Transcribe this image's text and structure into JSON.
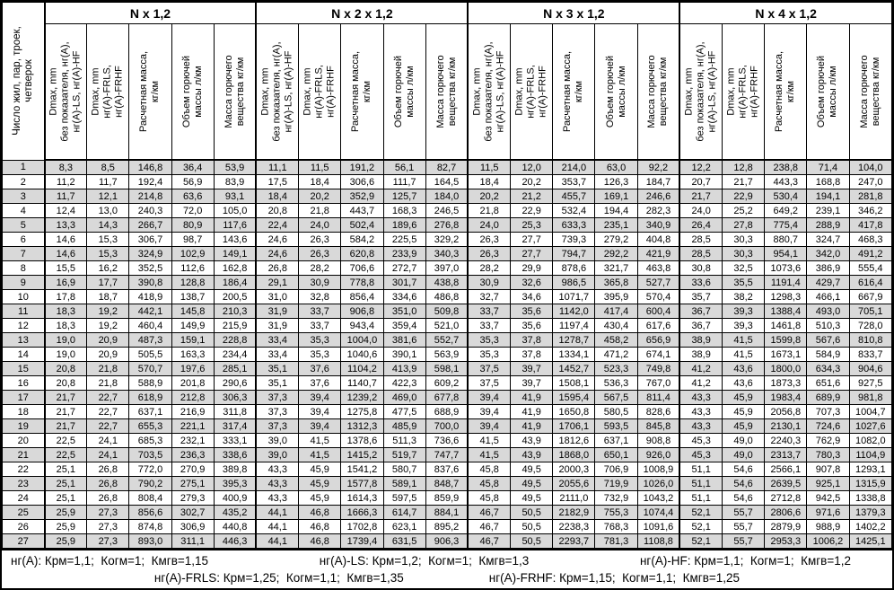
{
  "colors": {
    "stripe": "#d9d9d9",
    "border": "#000000",
    "background": "#ffffff"
  },
  "table": {
    "corner_header": "Число жил, пар, троек,\nчетверок",
    "groups": [
      {
        "label": "N x 1,2"
      },
      {
        "label": "N x 2 x 1,2"
      },
      {
        "label": "N x 3 x 1,2"
      },
      {
        "label": "N x 4 x 1,2"
      }
    ],
    "subheaders": [
      "Dmax, mm\nбез показателя, нг(А),\nнг(А)-LS, нг(А)-HF",
      "Dmax, mm\nнг(А)-FRLS,\nнг(А)-FRHF",
      "Расчетная масса,\nкг/км",
      "Объем горючей\nмассы л/км",
      "Масса горючего\nвещества кг/км"
    ],
    "rows": [
      {
        "num": "1",
        "values": [
          "8,3",
          "8,5",
          "146,8",
          "36,4",
          "53,9",
          "11,1",
          "11,5",
          "191,2",
          "56,1",
          "82,7",
          "11,5",
          "12,0",
          "214,0",
          "63,0",
          "92,2",
          "12,2",
          "12,8",
          "238,8",
          "71,4",
          "104,0"
        ]
      },
      {
        "num": "2",
        "values": [
          "11,2",
          "11,7",
          "192,4",
          "56,9",
          "83,9",
          "17,5",
          "18,4",
          "306,6",
          "111,7",
          "164,5",
          "18,4",
          "20,2",
          "353,7",
          "126,3",
          "184,7",
          "20,7",
          "21,7",
          "443,3",
          "168,8",
          "247,0"
        ]
      },
      {
        "num": "3",
        "values": [
          "11,7",
          "12,1",
          "214,8",
          "63,6",
          "93,1",
          "18,4",
          "20,2",
          "352,9",
          "125,7",
          "184,0",
          "20,2",
          "21,2",
          "455,7",
          "169,1",
          "246,6",
          "21,7",
          "22,9",
          "530,4",
          "194,1",
          "281,8"
        ]
      },
      {
        "num": "4",
        "values": [
          "12,4",
          "13,0",
          "240,3",
          "72,0",
          "105,0",
          "20,8",
          "21,8",
          "443,7",
          "168,3",
          "246,5",
          "21,8",
          "22,9",
          "532,4",
          "194,4",
          "282,3",
          "24,0",
          "25,2",
          "649,2",
          "239,1",
          "346,2"
        ]
      },
      {
        "num": "5",
        "values": [
          "13,3",
          "14,3",
          "266,7",
          "80,9",
          "117,6",
          "22,4",
          "24,0",
          "502,4",
          "189,6",
          "276,8",
          "24,0",
          "25,3",
          "633,3",
          "235,1",
          "340,9",
          "26,4",
          "27,8",
          "775,4",
          "288,9",
          "417,8"
        ]
      },
      {
        "num": "6",
        "values": [
          "14,6",
          "15,3",
          "306,7",
          "98,7",
          "143,6",
          "24,6",
          "26,3",
          "584,2",
          "225,5",
          "329,2",
          "26,3",
          "27,7",
          "739,3",
          "279,2",
          "404,8",
          "28,5",
          "30,3",
          "880,7",
          "324,7",
          "468,3"
        ]
      },
      {
        "num": "7",
        "values": [
          "14,6",
          "15,3",
          "324,9",
          "102,9",
          "149,1",
          "24,6",
          "26,3",
          "620,8",
          "233,9",
          "340,3",
          "26,3",
          "27,7",
          "794,7",
          "292,2",
          "421,9",
          "28,5",
          "30,3",
          "954,1",
          "342,0",
          "491,2"
        ]
      },
      {
        "num": "8",
        "values": [
          "15,5",
          "16,2",
          "352,5",
          "112,6",
          "162,8",
          "26,8",
          "28,2",
          "706,6",
          "272,7",
          "397,0",
          "28,2",
          "29,9",
          "878,6",
          "321,7",
          "463,8",
          "30,8",
          "32,5",
          "1073,6",
          "386,9",
          "555,4"
        ]
      },
      {
        "num": "9",
        "values": [
          "16,9",
          "17,7",
          "390,8",
          "128,8",
          "186,4",
          "29,1",
          "30,9",
          "778,8",
          "301,7",
          "438,8",
          "30,9",
          "32,6",
          "986,5",
          "365,8",
          "527,7",
          "33,6",
          "35,5",
          "1191,4",
          "429,7",
          "616,4"
        ]
      },
      {
        "num": "10",
        "values": [
          "17,8",
          "18,7",
          "418,9",
          "138,7",
          "200,5",
          "31,0",
          "32,8",
          "856,4",
          "334,6",
          "486,8",
          "32,7",
          "34,6",
          "1071,7",
          "395,9",
          "570,4",
          "35,7",
          "38,2",
          "1298,3",
          "466,1",
          "667,9"
        ]
      },
      {
        "num": "11",
        "values": [
          "18,3",
          "19,2",
          "442,1",
          "145,8",
          "210,3",
          "31,9",
          "33,7",
          "906,8",
          "351,0",
          "509,8",
          "33,7",
          "35,6",
          "1142,0",
          "417,4",
          "600,4",
          "36,7",
          "39,3",
          "1388,4",
          "493,0",
          "705,1"
        ]
      },
      {
        "num": "12",
        "values": [
          "18,3",
          "19,2",
          "460,4",
          "149,9",
          "215,9",
          "31,9",
          "33,7",
          "943,4",
          "359,4",
          "521,0",
          "33,7",
          "35,6",
          "1197,4",
          "430,4",
          "617,6",
          "36,7",
          "39,3",
          "1461,8",
          "510,3",
          "728,0"
        ]
      },
      {
        "num": "13",
        "values": [
          "19,0",
          "20,9",
          "487,3",
          "159,1",
          "228,8",
          "33,4",
          "35,3",
          "1004,0",
          "381,6",
          "552,7",
          "35,3",
          "37,8",
          "1278,7",
          "458,2",
          "656,9",
          "38,9",
          "41,5",
          "1599,8",
          "567,6",
          "810,8"
        ]
      },
      {
        "num": "14",
        "values": [
          "19,0",
          "20,9",
          "505,5",
          "163,3",
          "234,4",
          "33,4",
          "35,3",
          "1040,6",
          "390,1",
          "563,9",
          "35,3",
          "37,8",
          "1334,1",
          "471,2",
          "674,1",
          "38,9",
          "41,5",
          "1673,1",
          "584,9",
          "833,7"
        ]
      },
      {
        "num": "15",
        "values": [
          "20,8",
          "21,8",
          "570,7",
          "197,6",
          "285,1",
          "35,1",
          "37,6",
          "1104,2",
          "413,9",
          "598,1",
          "37,5",
          "39,7",
          "1452,7",
          "523,3",
          "749,8",
          "41,2",
          "43,6",
          "1800,0",
          "634,3",
          "904,6"
        ]
      },
      {
        "num": "16",
        "values": [
          "20,8",
          "21,8",
          "588,9",
          "201,8",
          "290,6",
          "35,1",
          "37,6",
          "1140,7",
          "422,3",
          "609,2",
          "37,5",
          "39,7",
          "1508,1",
          "536,3",
          "767,0",
          "41,2",
          "43,6",
          "1873,3",
          "651,6",
          "927,5"
        ]
      },
      {
        "num": "17",
        "values": [
          "21,7",
          "22,7",
          "618,9",
          "212,8",
          "306,3",
          "37,3",
          "39,4",
          "1239,2",
          "469,0",
          "677,8",
          "39,4",
          "41,9",
          "1595,4",
          "567,5",
          "811,4",
          "43,3",
          "45,9",
          "1983,4",
          "689,9",
          "981,8"
        ]
      },
      {
        "num": "18",
        "values": [
          "21,7",
          "22,7",
          "637,1",
          "216,9",
          "311,8",
          "37,3",
          "39,4",
          "1275,8",
          "477,5",
          "688,9",
          "39,4",
          "41,9",
          "1650,8",
          "580,5",
          "828,6",
          "43,3",
          "45,9",
          "2056,8",
          "707,3",
          "1004,7"
        ]
      },
      {
        "num": "19",
        "values": [
          "21,7",
          "22,7",
          "655,3",
          "221,1",
          "317,4",
          "37,3",
          "39,4",
          "1312,3",
          "485,9",
          "700,0",
          "39,4",
          "41,9",
          "1706,1",
          "593,5",
          "845,8",
          "43,3",
          "45,9",
          "2130,1",
          "724,6",
          "1027,6"
        ]
      },
      {
        "num": "20",
        "values": [
          "22,5",
          "24,1",
          "685,3",
          "232,1",
          "333,1",
          "39,0",
          "41,5",
          "1378,6",
          "511,3",
          "736,6",
          "41,5",
          "43,9",
          "1812,6",
          "637,1",
          "908,8",
          "45,3",
          "49,0",
          "2240,3",
          "762,9",
          "1082,0"
        ]
      },
      {
        "num": "21",
        "values": [
          "22,5",
          "24,1",
          "703,5",
          "236,3",
          "338,6",
          "39,0",
          "41,5",
          "1415,2",
          "519,7",
          "747,7",
          "41,5",
          "43,9",
          "1868,0",
          "650,1",
          "926,0",
          "45,3",
          "49,0",
          "2313,7",
          "780,3",
          "1104,9"
        ]
      },
      {
        "num": "22",
        "values": [
          "25,1",
          "26,8",
          "772,0",
          "270,9",
          "389,8",
          "43,3",
          "45,9",
          "1541,2",
          "580,7",
          "837,6",
          "45,8",
          "49,5",
          "2000,3",
          "706,9",
          "1008,9",
          "51,1",
          "54,6",
          "2566,1",
          "907,8",
          "1293,1"
        ]
      },
      {
        "num": "23",
        "values": [
          "25,1",
          "26,8",
          "790,2",
          "275,1",
          "395,3",
          "43,3",
          "45,9",
          "1577,8",
          "589,1",
          "848,7",
          "45,8",
          "49,5",
          "2055,6",
          "719,9",
          "1026,0",
          "51,1",
          "54,6",
          "2639,5",
          "925,1",
          "1315,9"
        ]
      },
      {
        "num": "24",
        "values": [
          "25,1",
          "26,8",
          "808,4",
          "279,3",
          "400,9",
          "43,3",
          "45,9",
          "1614,3",
          "597,5",
          "859,9",
          "45,8",
          "49,5",
          "2111,0",
          "732,9",
          "1043,2",
          "51,1",
          "54,6",
          "2712,8",
          "942,5",
          "1338,8"
        ]
      },
      {
        "num": "25",
        "values": [
          "25,9",
          "27,3",
          "856,6",
          "302,7",
          "435,2",
          "44,1",
          "46,8",
          "1666,3",
          "614,7",
          "884,1",
          "46,7",
          "50,5",
          "2182,9",
          "755,3",
          "1074,4",
          "52,1",
          "55,7",
          "2806,6",
          "971,6",
          "1379,3"
        ]
      },
      {
        "num": "26",
        "values": [
          "25,9",
          "27,3",
          "874,8",
          "306,9",
          "440,8",
          "44,1",
          "46,8",
          "1702,8",
          "623,1",
          "895,2",
          "46,7",
          "50,5",
          "2238,3",
          "768,3",
          "1091,6",
          "52,1",
          "55,7",
          "2879,9",
          "988,9",
          "1402,2"
        ]
      },
      {
        "num": "27",
        "values": [
          "25,9",
          "27,3",
          "893,0",
          "311,1",
          "446,3",
          "44,1",
          "46,8",
          "1739,4",
          "631,5",
          "906,3",
          "46,7",
          "50,5",
          "2293,7",
          "781,3",
          "1108,8",
          "52,1",
          "55,7",
          "2953,3",
          "1006,2",
          "1425,1"
        ]
      }
    ]
  },
  "footer": {
    "line1": [
      "нг(А): Крм=1,1;  Когм=1;  Кмгв=1,15",
      "нг(А)-LS: Крм=1,2;  Когм=1;  Кмгв=1,3",
      "нг(А)-HF: Крм=1,1;  Когм=1;  Кмгв=1,2"
    ],
    "line2": [
      "нг(А)-FRLS: Крм=1,25;  Когм=1,1;  Кмгв=1,35",
      "нг(А)-FRHF: Крм=1,15;  Когм=1,1;  Кмгв=1,25"
    ]
  }
}
